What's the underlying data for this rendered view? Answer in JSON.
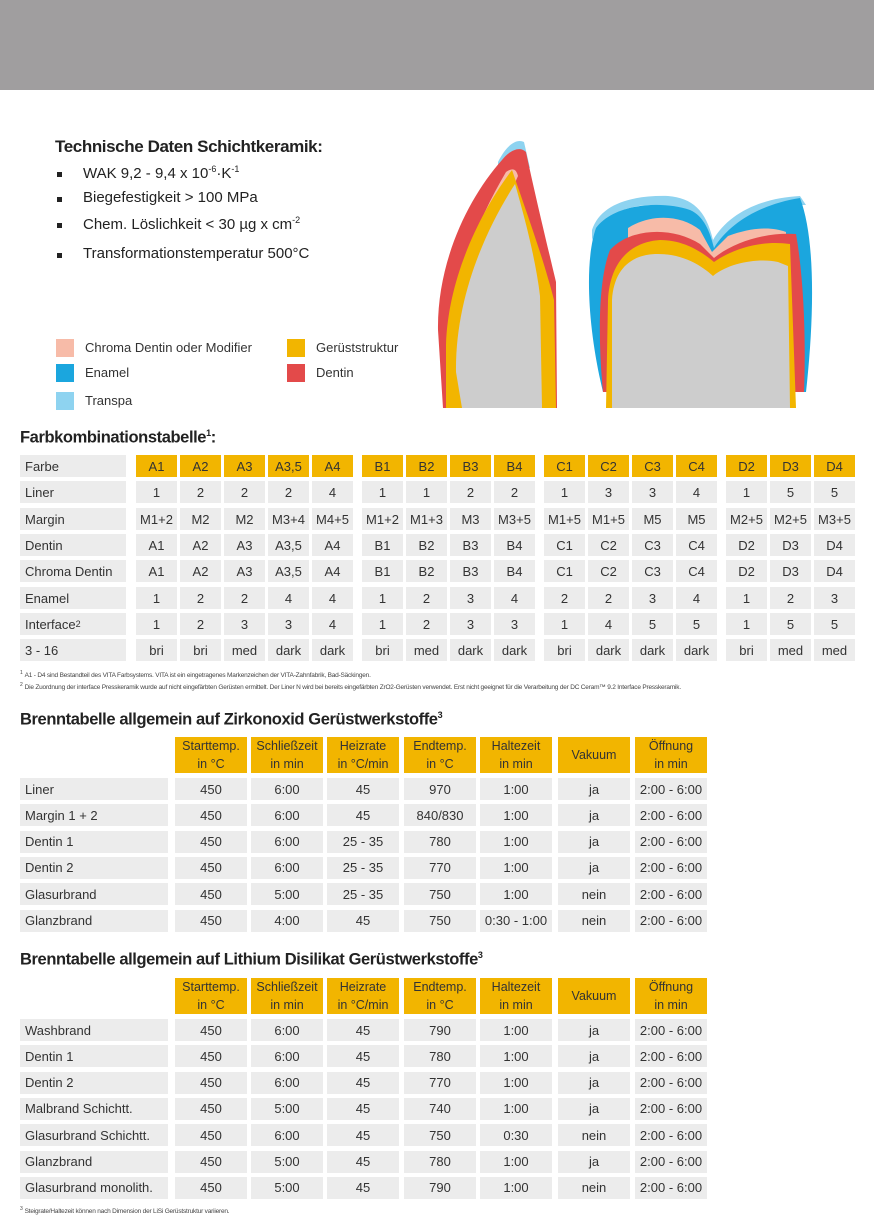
{
  "tech_data": {
    "title": "Technische Daten Schichtkeramik:",
    "bullets": [
      [
        {
          "text": "WAK 9,2 - 9,4 x 10"
        },
        {
          "sup": "-6"
        },
        {
          "text": "·K"
        },
        {
          "sup": "-1"
        }
      ],
      [
        {
          "text": "Biegefestigkeit > 100 MPa"
        }
      ],
      [
        {
          "text": "Chem. Löslichkeit < 30 µg x cm"
        },
        {
          "sup": "-2"
        }
      ],
      [
        {
          "text": "Transformationstemperatur 500°C"
        }
      ]
    ]
  },
  "legend": [
    {
      "label": "Chroma Dentin oder Modifier",
      "color": "#f7bba8"
    },
    {
      "label": "Enamel",
      "color": "#1ba6de"
    },
    {
      "label": "Transpa",
      "color": "#8ed3f0"
    },
    {
      "label": "Gerüststruktur",
      "color": "#f2b500"
    },
    {
      "label": "Dentin",
      "color": "#e34a4a"
    }
  ],
  "color_table": {
    "title": "Farbkombinationstabelle",
    "title_sup": "1",
    "header": {
      "label": "Farbe",
      "groups": [
        [
          "A1",
          "A2",
          "A3",
          "A3,5",
          "A4"
        ],
        [
          "B1",
          "B2",
          "B3",
          "B4"
        ],
        [
          "C1",
          "C2",
          "C3",
          "C4"
        ],
        [
          "D2",
          "D3",
          "D4"
        ]
      ]
    },
    "rows": [
      {
        "label": "Liner",
        "groups": [
          [
            "1",
            "2",
            "2",
            "2",
            "4"
          ],
          [
            "1",
            "1",
            "2",
            "2"
          ],
          [
            "1",
            "3",
            "3",
            "4"
          ],
          [
            "1",
            "5",
            "5"
          ]
        ]
      },
      {
        "label": "Margin",
        "groups": [
          [
            "M1+2",
            "M2",
            "M2",
            "M3+4",
            "M4+5"
          ],
          [
            "M1+2",
            "M1+3",
            "M3",
            "M3+5"
          ],
          [
            "M1+5",
            "M1+5",
            "M5",
            "M5"
          ],
          [
            "M2+5",
            "M2+5",
            "M3+5"
          ]
        ]
      },
      {
        "label": "Dentin",
        "groups": [
          [
            "A1",
            "A2",
            "A3",
            "A3,5",
            "A4"
          ],
          [
            "B1",
            "B2",
            "B3",
            "B4"
          ],
          [
            "C1",
            "C2",
            "C3",
            "C4"
          ],
          [
            "D2",
            "D3",
            "D4"
          ]
        ]
      },
      {
        "label": "Chroma Dentin",
        "groups": [
          [
            "A1",
            "A2",
            "A3",
            "A3,5",
            "A4"
          ],
          [
            "B1",
            "B2",
            "B3",
            "B4"
          ],
          [
            "C1",
            "C2",
            "C3",
            "C4"
          ],
          [
            "D2",
            "D3",
            "D4"
          ]
        ]
      },
      {
        "label": "Enamel",
        "groups": [
          [
            "1",
            "2",
            "2",
            "4",
            "4"
          ],
          [
            "1",
            "2",
            "3",
            "4"
          ],
          [
            "2",
            "2",
            "3",
            "4"
          ],
          [
            "1",
            "2",
            "3"
          ]
        ]
      },
      {
        "label": "Interface",
        "label_sup": "2",
        "groups": [
          [
            "1",
            "2",
            "3",
            "3",
            "4"
          ],
          [
            "1",
            "2",
            "3",
            "3"
          ],
          [
            "1",
            "4",
            "5",
            "5"
          ],
          [
            "1",
            "5",
            "5"
          ]
        ]
      },
      {
        "label": "3 - 16",
        "groups": [
          [
            "bri",
            "bri",
            "med",
            "dark",
            "dark"
          ],
          [
            "bri",
            "med",
            "dark",
            "dark"
          ],
          [
            "bri",
            "dark",
            "dark",
            "dark"
          ],
          [
            "bri",
            "med",
            "med"
          ]
        ]
      }
    ],
    "footnotes": [
      {
        "marker": "1",
        "text": "A1 - D4 sind Bestandteil des VITA Farbsystems. VITA ist ein eingetragenes Markenzeichen der VITA-Zahnfabrik, Bad-Säckingen."
      },
      {
        "marker": "2",
        "text": "Die Zuordnung der interface Presskeramik wurde auf nicht eingefärbten Gerüsten ermittelt. Der Liner N wird bei bereits eingefärbten ZrO2-Gerüsten verwendet. Erst nicht geeignet für die Verarbeitung der DC Ceram™ 9.2 Interface  Presskeramik."
      }
    ]
  },
  "firing_tables": [
    {
      "title": "Brenntabelle allgemein auf Zirkonoxid Gerüstwerkstoffe",
      "title_sup": "3",
      "columns": [
        [
          "Starttemp.",
          "in °C"
        ],
        [
          "Schließzeit",
          "in min"
        ],
        [
          "Heizrate",
          "in °C/min"
        ],
        [
          "Endtemp.",
          "in °C"
        ],
        [
          "Haltezeit",
          "in min"
        ],
        [
          "Vakuum"
        ],
        [
          "Öffnung",
          "in min"
        ]
      ],
      "rows": [
        [
          "Liner",
          "450",
          "6:00",
          "45",
          "970",
          "1:00",
          "ja",
          "2:00 - 6:00"
        ],
        [
          "Margin 1 + 2",
          "450",
          "6:00",
          "45",
          "840/830",
          "1:00",
          "ja",
          "2:00 - 6:00"
        ],
        [
          "Dentin 1",
          "450",
          "6:00",
          "25 - 35",
          "780",
          "1:00",
          "ja",
          "2:00 - 6:00"
        ],
        [
          "Dentin 2",
          "450",
          "6:00",
          "25 - 35",
          "770",
          "1:00",
          "ja",
          "2:00 - 6:00"
        ],
        [
          "Glasurbrand",
          "450",
          "5:00",
          "25 - 35",
          "750",
          "1:00",
          "nein",
          "2:00 - 6:00"
        ],
        [
          "Glanzbrand",
          "450",
          "4:00",
          "45",
          "750",
          "0:30 - 1:00",
          "nein",
          "2:00 - 6:00"
        ]
      ]
    },
    {
      "title": "Brenntabelle allgemein auf Lithium Disilikat Gerüstwerkstoffe",
      "title_sup": "3",
      "columns": [
        [
          "Starttemp.",
          "in °C"
        ],
        [
          "Schließzeit",
          "in min"
        ],
        [
          "Heizrate",
          "in °C/min"
        ],
        [
          "Endtemp.",
          "in °C"
        ],
        [
          "Haltezeit",
          "in min"
        ],
        [
          "Vakuum"
        ],
        [
          "Öffnung",
          "in min"
        ]
      ],
      "rows": [
        [
          "Washbrand",
          "450",
          "6:00",
          "45",
          "790",
          "1:00",
          "ja",
          "2:00 - 6:00"
        ],
        [
          "Dentin 1",
          "450",
          "6:00",
          "45",
          "780",
          "1:00",
          "ja",
          "2:00 - 6:00"
        ],
        [
          "Dentin 2",
          "450",
          "6:00",
          "45",
          "770",
          "1:00",
          "ja",
          "2:00 - 6:00"
        ],
        [
          "Malbrand Schichtt.",
          "450",
          "5:00",
          "45",
          "740",
          "1:00",
          "ja",
          "2:00 - 6:00"
        ],
        [
          "Glasurbrand Schichtt.",
          "450",
          "6:00",
          "45",
          "750",
          "0:30",
          "nein",
          "2:00 - 6:00"
        ],
        [
          "Glanzbrand",
          "450",
          "5:00",
          "45",
          "780",
          "1:00",
          "ja",
          "2:00 - 6:00"
        ],
        [
          "Glasurbrand monolith.",
          "450",
          "5:00",
          "45",
          "790",
          "1:00",
          "nein",
          "2:00 - 6:00"
        ]
      ],
      "footnote": {
        "marker": "3",
        "text": "Steigrate/Haltezeit können nach Dimension der LiSi Gerüststruktur variieren."
      }
    }
  ]
}
